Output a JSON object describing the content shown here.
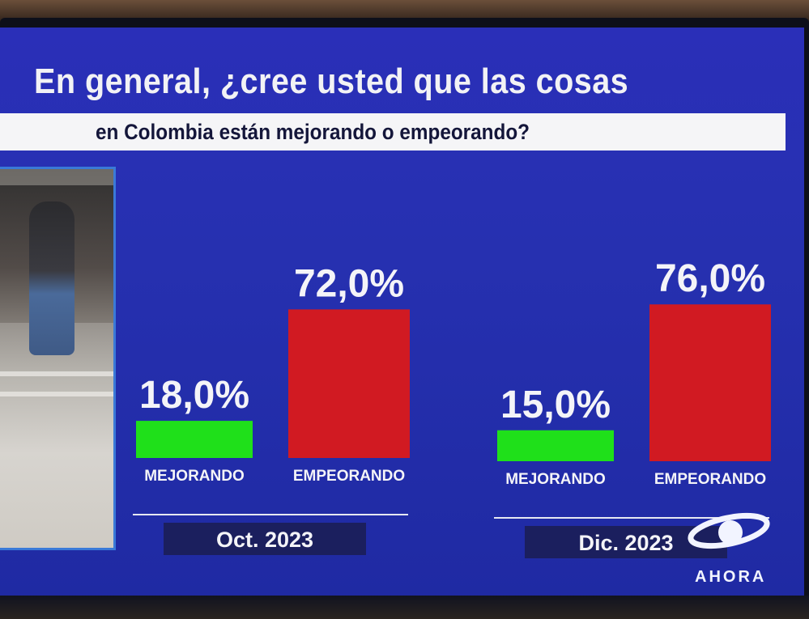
{
  "header": {
    "title": "En general, ¿cree usted que las cosas",
    "subtitle": "en Colombia están mejorando o empeorando?"
  },
  "colors": {
    "mejorando": "#1fe01a",
    "empeorando": "#d11a22",
    "label_bg": "#1b1f5e",
    "divider": "#e6e8f2"
  },
  "logo": {
    "icon": "caracol-tv-logo-icon",
    "text": "AHORA"
  },
  "chart_data": {
    "type": "bar",
    "groups": [
      {
        "period": "Oct. 2023",
        "categories": [
          "MEJORANDO",
          "EMPEORANDO"
        ],
        "values": [
          18.0,
          72.0
        ],
        "value_labels": [
          "18,0%",
          "72,0%"
        ]
      },
      {
        "period": "Dic. 2023",
        "categories": [
          "MEJORANDO",
          "EMPEORANDO"
        ],
        "values": [
          15.0,
          76.0
        ],
        "value_labels": [
          "15,0%",
          "76,0%"
        ]
      }
    ],
    "ylim": [
      0,
      100
    ],
    "grid": false,
    "legend": "none"
  }
}
